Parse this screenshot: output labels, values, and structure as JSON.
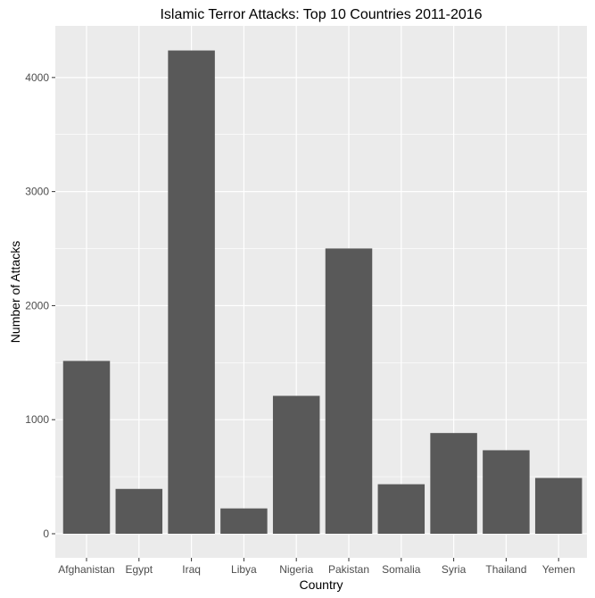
{
  "chart_data": {
    "type": "bar",
    "title": "Islamic Terror Attacks: Top 10 Countries 2011-2016",
    "xlabel": "Country",
    "ylabel": "Number of Attacks",
    "categories": [
      "Afghanistan",
      "Egypt",
      "Iraq",
      "Libya",
      "Nigeria",
      "Pakistan",
      "Somalia",
      "Syria",
      "Thailand",
      "Yemen"
    ],
    "values": [
      1515,
      393,
      4237,
      222,
      1209,
      2501,
      434,
      883,
      732,
      489
    ],
    "ylim": [
      0,
      4450
    ],
    "yticks": [
      0,
      1000,
      2000,
      3000,
      4000
    ],
    "ytick_labels": [
      "0",
      "1000",
      "2000",
      "3000",
      "4000"
    ],
    "grid": true,
    "legend": "none",
    "colors": {
      "bar": "#595959",
      "panel_background": "#ebebeb",
      "grid_major": "#ffffff",
      "tick_mark": "#333333"
    }
  }
}
